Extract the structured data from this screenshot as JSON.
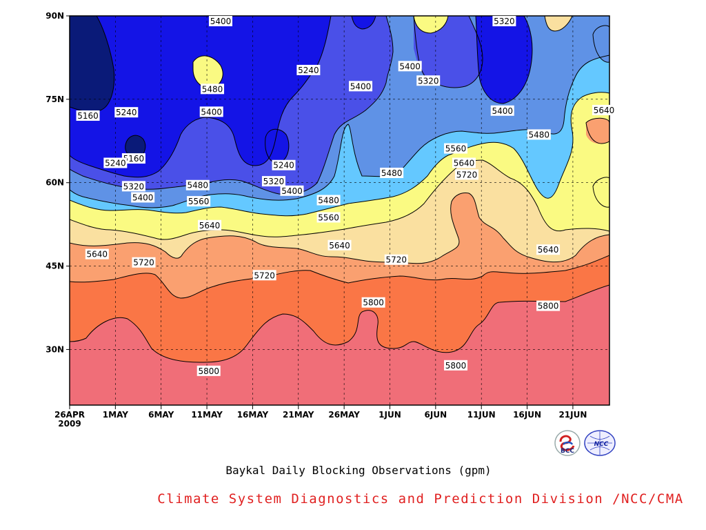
{
  "subtitle": "Baykal Daily Blocking Observations (gpm)",
  "credit": "Climate System Diagnostics and Prediction Division /NCC/CMA",
  "credit_color": "#e02020",
  "logos": {
    "left": {
      "name": "bcc-logo",
      "text": "BCC"
    },
    "right": {
      "name": "ncc-logo",
      "text": "NCC"
    }
  },
  "chart_data": {
    "type": "heatmap",
    "title": "Baykal Daily Blocking Observations (gpm)",
    "xlabel": "",
    "ylabel": "",
    "x_axis": {
      "ticks": [
        "26APR",
        "1MAY",
        "6MAY",
        "11MAY",
        "16MAY",
        "21MAY",
        "26MAY",
        "1JUN",
        "6JUN",
        "11JUN",
        "16JUN",
        "21JUN"
      ],
      "year_label": "2009",
      "range_days": [
        0,
        59
      ]
    },
    "y_axis": {
      "ticks": [
        "30N",
        "45N",
        "60N",
        "75N",
        "90N"
      ],
      "tick_values": [
        30,
        45,
        60,
        75,
        90
      ],
      "range": [
        20,
        90
      ]
    },
    "levels": [
      5160,
      5240,
      5320,
      5400,
      5480,
      5560,
      5640,
      5720,
      5800
    ],
    "band_colors": [
      "#0a1a78",
      "#1414e6",
      "#4a50e8",
      "#5f92e6",
      "#64c8ff",
      "#fafa82",
      "#fae0a0",
      "#faa070",
      "#fa7646",
      "#f06e78"
    ],
    "contour_labels": [
      {
        "text": "5400",
        "day": 16.5,
        "lat": 89
      },
      {
        "text": "5320",
        "day": 47.5,
        "lat": 89
      },
      {
        "text": "5160",
        "day": 2,
        "lat": 72
      },
      {
        "text": "5240",
        "day": 6.2,
        "lat": 72.6
      },
      {
        "text": "5480",
        "day": 15.6,
        "lat": 76.8
      },
      {
        "text": "5400",
        "day": 15.5,
        "lat": 72.7
      },
      {
        "text": "5240",
        "day": 26.1,
        "lat": 80.2
      },
      {
        "text": "5400",
        "day": 31.8,
        "lat": 77.3
      },
      {
        "text": "5400",
        "day": 37.2,
        "lat": 80.9
      },
      {
        "text": "5320",
        "day": 39.2,
        "lat": 78.3
      },
      {
        "text": "5400",
        "day": 47.3,
        "lat": 72.9
      },
      {
        "text": "5640",
        "day": 58.4,
        "lat": 73
      },
      {
        "text": "5160",
        "day": 7,
        "lat": 64.3
      },
      {
        "text": "5240",
        "day": 5,
        "lat": 63.5
      },
      {
        "text": "5240",
        "day": 23.4,
        "lat": 63.1
      },
      {
        "text": "5480",
        "day": 51.3,
        "lat": 68.6
      },
      {
        "text": "5560",
        "day": 42.2,
        "lat": 66.1
      },
      {
        "text": "5640",
        "day": 43.1,
        "lat": 63.5
      },
      {
        "text": "5720",
        "day": 43.4,
        "lat": 61.4
      },
      {
        "text": "5480",
        "day": 35.2,
        "lat": 61.7
      },
      {
        "text": "5320",
        "day": 7,
        "lat": 59.3
      },
      {
        "text": "5480",
        "day": 14,
        "lat": 59.5
      },
      {
        "text": "5320",
        "day": 22.3,
        "lat": 60.2
      },
      {
        "text": "5400",
        "day": 24.3,
        "lat": 58.5
      },
      {
        "text": "5400",
        "day": 8,
        "lat": 57.3
      },
      {
        "text": "5560",
        "day": 14.1,
        "lat": 56.6
      },
      {
        "text": "5480",
        "day": 28.3,
        "lat": 56.8
      },
      {
        "text": "5560",
        "day": 28.3,
        "lat": 53.7
      },
      {
        "text": "5640",
        "day": 15.3,
        "lat": 52.3
      },
      {
        "text": "5640",
        "day": 29.5,
        "lat": 48.7
      },
      {
        "text": "5640",
        "day": 3,
        "lat": 47.1
      },
      {
        "text": "5720",
        "day": 8.1,
        "lat": 45.6
      },
      {
        "text": "5720",
        "day": 21.3,
        "lat": 43.3
      },
      {
        "text": "5720",
        "day": 35.7,
        "lat": 46.1
      },
      {
        "text": "5640",
        "day": 52.3,
        "lat": 47.9
      },
      {
        "text": "5800",
        "day": 33.2,
        "lat": 38.4
      },
      {
        "text": "5800",
        "day": 52.3,
        "lat": 37.8
      },
      {
        "text": "5800",
        "day": 15.2,
        "lat": 26.1
      },
      {
        "text": "5800",
        "day": 42.2,
        "lat": 27.1
      }
    ]
  }
}
